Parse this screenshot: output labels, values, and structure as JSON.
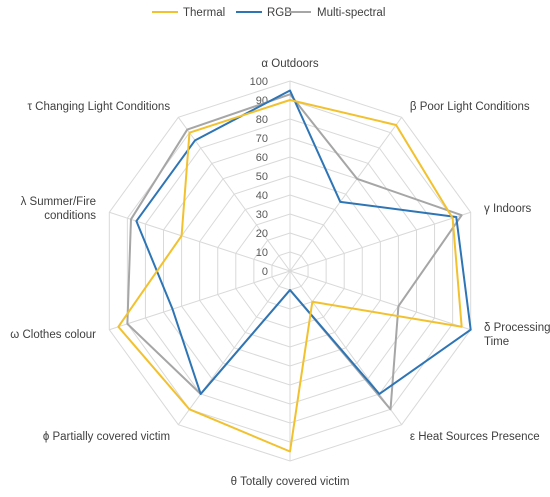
{
  "chart_data": {
    "type": "radar",
    "categories": [
      "α Outdoors",
      "β Poor Light Conditions",
      "γ Indoors",
      "δ Processing Time",
      "ε Heat Sources Presence",
      "θ Totally covered victim",
      "ϕ Partially covered victim",
      "ω Clothes colour",
      "λ Summer/Fire conditions",
      "τ Changing Light Conditions"
    ],
    "series": [
      {
        "name": "Thermal",
        "color": "#f2c12e",
        "values": [
          90,
          95,
          90,
          95,
          20,
          95,
          90,
          95,
          60,
          90
        ]
      },
      {
        "name": "RGB",
        "color": "#2e75b6",
        "values": [
          95,
          45,
          92,
          100,
          80,
          10,
          80,
          65,
          85,
          85
        ]
      },
      {
        "name": "Multi-spectral",
        "color": "#a6a6a6",
        "values": [
          93,
          60,
          95,
          60,
          90,
          10,
          80,
          90,
          88,
          92
        ]
      }
    ],
    "rlim": [
      0,
      100
    ],
    "ticks": [
      "0",
      "10",
      "20",
      "30",
      "40",
      "50",
      "60",
      "70",
      "80",
      "90",
      "100"
    ],
    "legend_position": "top"
  }
}
